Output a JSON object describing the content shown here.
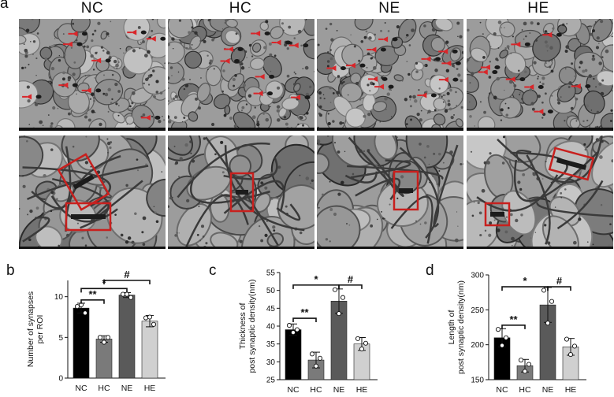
{
  "figure": {
    "panel_labels": [
      "a",
      "b",
      "c",
      "d"
    ],
    "groups": [
      "NC",
      "HC",
      "NE",
      "HE"
    ],
    "colors": {
      "bar_fills": [
        "#000000",
        "#7a7a7a",
        "#5a5a5a",
        "#d0d0d0"
      ],
      "arrow": "#d9262a",
      "roi_box": "#c8201e"
    },
    "micrographs": {
      "top_row": {
        "NC": {
          "arrows": 9
        },
        "HC": {
          "arrows": 8
        },
        "NE": {
          "arrows": 11
        },
        "HE": {
          "arrows": 8
        }
      },
      "bottom_row": {
        "NC": {
          "roi_boxes": 2
        },
        "HC": {
          "roi_boxes": 1
        },
        "NE": {
          "roi_boxes": 1
        },
        "HE": {
          "roi_boxes": 2
        }
      }
    }
  },
  "chart_data": [
    {
      "panel": "b",
      "type": "bar",
      "categories": [
        "NC",
        "HC",
        "NE",
        "HE"
      ],
      "values": [
        8.6,
        4.8,
        10.2,
        7.0
      ],
      "errors": [
        0.6,
        0.4,
        0.3,
        0.7
      ],
      "points": [
        [
          8.8,
          9.0,
          8.0
        ],
        [
          5.0,
          4.4,
          5.0
        ],
        [
          10.3,
          10.3,
          9.9
        ],
        [
          7.4,
          7.5,
          6.6
        ]
      ],
      "ylabel": "Number of synapses\nper ROI",
      "ylim": [
        0,
        12
      ],
      "yticks": [
        0,
        5,
        10
      ],
      "significance": [
        {
          "from": "NC",
          "to": "HC",
          "label": "**",
          "y": 9.6
        },
        {
          "from": "NC",
          "to": "NE",
          "label": "*",
          "y": 11.0
        },
        {
          "from": "HC",
          "to": "HE",
          "label": "#",
          "y": 12.0
        }
      ]
    },
    {
      "panel": "c",
      "type": "bar",
      "categories": [
        "NC",
        "HC",
        "NE",
        "HE"
      ],
      "values": [
        39.0,
        30.5,
        47.0,
        35.0
      ],
      "errors": [
        1.6,
        2.2,
        3.4,
        1.8
      ],
      "points": [
        [
          40.2,
          38.2,
          39.0
        ],
        [
          32.2,
          28.8,
          31.0
        ],
        [
          50.2,
          43.5,
          48.0
        ],
        [
          36.5,
          33.6,
          35.2
        ]
      ],
      "ylabel": "Thickness of\npost synaptic density(nm)",
      "ylim": [
        25,
        55
      ],
      "yticks": [
        25,
        30,
        35,
        40,
        45,
        50,
        55
      ],
      "significance": [
        {
          "from": "NC",
          "to": "HC",
          "label": "**",
          "y": 42.2
        },
        {
          "from": "NC",
          "to": "NE",
          "label": "*",
          "y": 51.5
        },
        {
          "from": "NE",
          "to": "HE",
          "label": "#",
          "y": 51.5
        }
      ]
    },
    {
      "panel": "d",
      "type": "bar",
      "categories": [
        "NC",
        "HC",
        "NE",
        "HE"
      ],
      "values": [
        210,
        170,
        257,
        197
      ],
      "errors": [
        13,
        9,
        25,
        12
      ],
      "points": [
        [
          222,
          199,
          210
        ],
        [
          178,
          162,
          172
        ],
        [
          278,
          231,
          262
        ],
        [
          208,
          186,
          198
        ]
      ],
      "ylabel": "Length of\npost synaptic density(nm)",
      "ylim": [
        150,
        300
      ],
      "yticks": [
        150,
        200,
        250,
        300
      ],
      "significance": [
        {
          "from": "NC",
          "to": "HC",
          "label": "**",
          "y": 228
        },
        {
          "from": "NC",
          "to": "NE",
          "label": "*",
          "y": 283
        },
        {
          "from": "NE",
          "to": "HE",
          "label": "#",
          "y": 283
        }
      ]
    }
  ]
}
